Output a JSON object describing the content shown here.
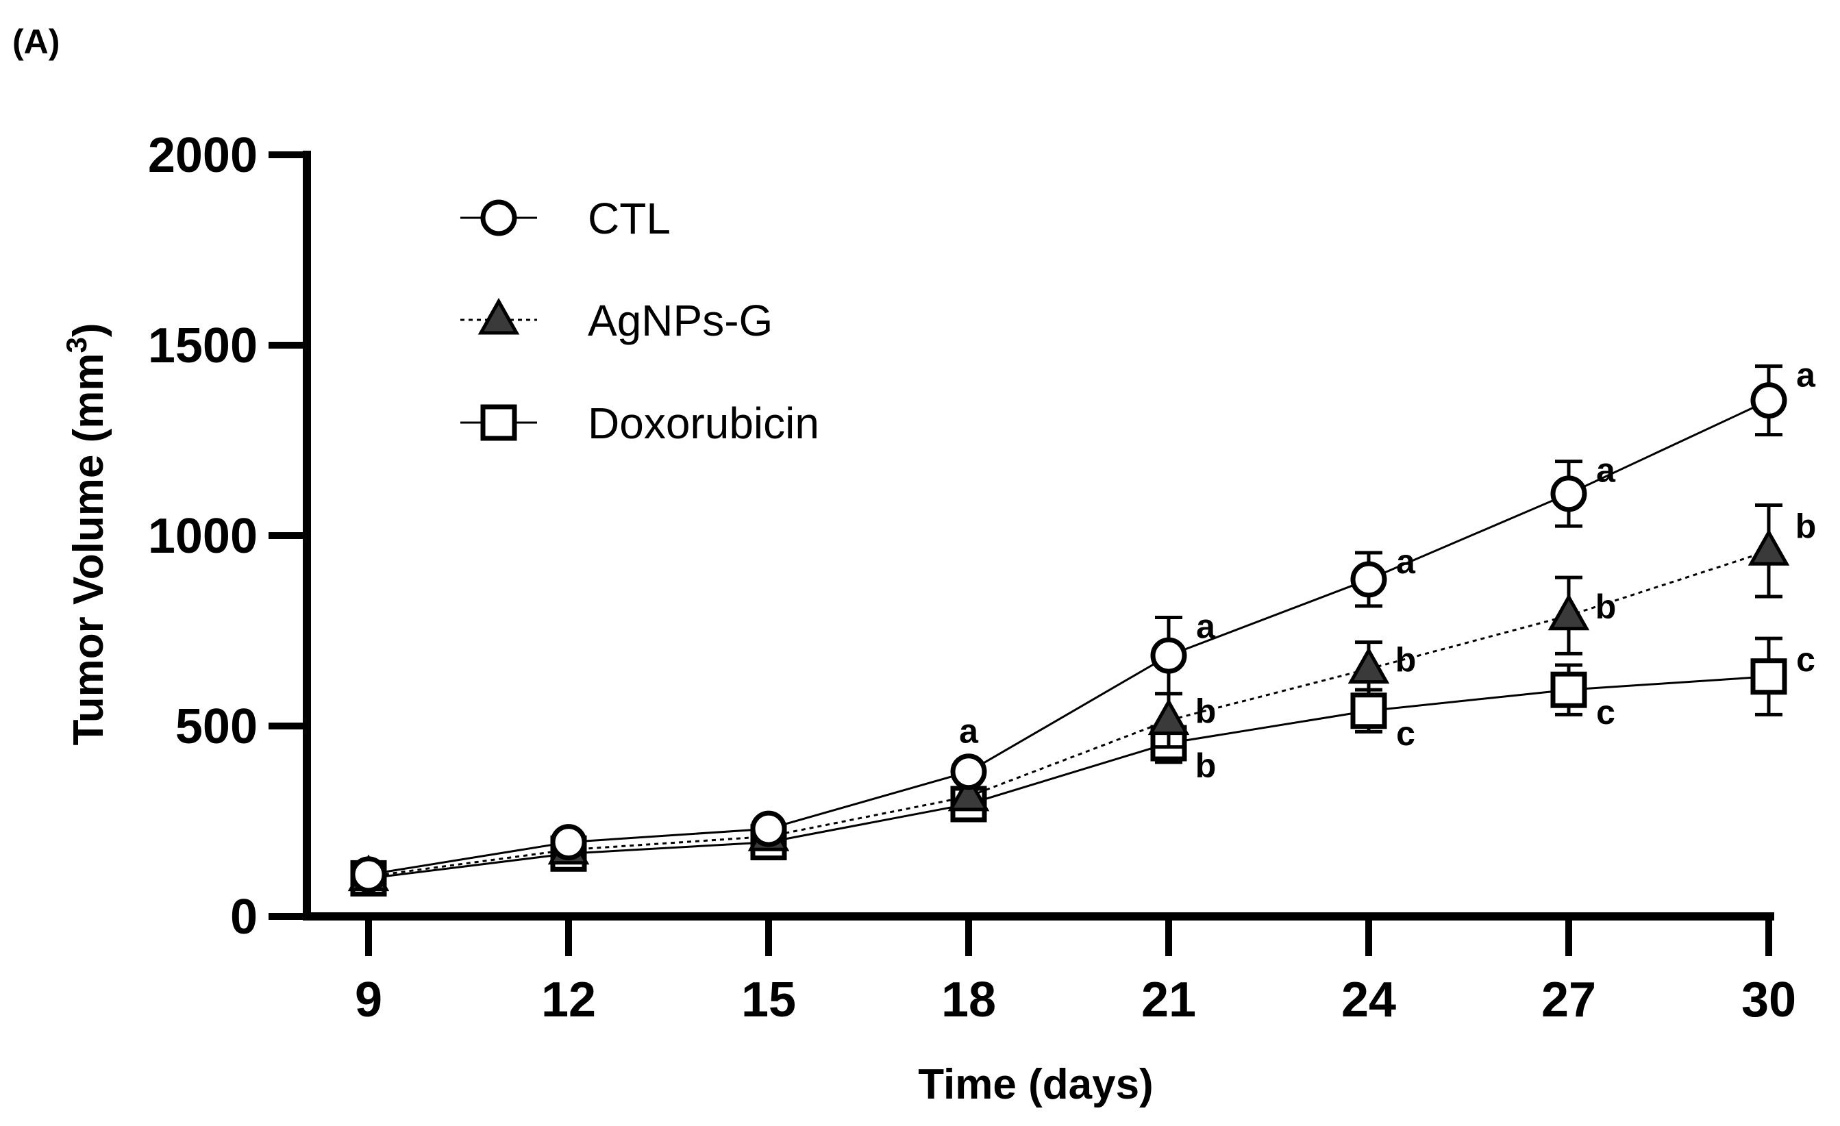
{
  "panel_label": "(A)",
  "chart_data": {
    "type": "line",
    "title": "",
    "xlabel": "Time (days)",
    "ylabel": "Tumor Volume (mm",
    "ylabel_superscript": "3",
    "ylabel_close": ")",
    "x": [
      9,
      12,
      15,
      18,
      21,
      24,
      27,
      30
    ],
    "x_tick_labels": [
      "9",
      "12",
      "15",
      "18",
      "21",
      "24",
      "27",
      "30"
    ],
    "ylim": [
      0,
      2000
    ],
    "y_ticks": [
      0,
      500,
      1000,
      1500,
      2000
    ],
    "y_tick_labels": [
      "0",
      "500",
      "1000",
      "1500",
      "2000"
    ],
    "legend_position": "top-left",
    "series": [
      {
        "name": "CTL",
        "marker": "open-circle",
        "line_style": "solid",
        "values": [
          110,
          195,
          230,
          380,
          685,
          885,
          1110,
          1355
        ],
        "errors": [
          null,
          null,
          null,
          null,
          100,
          70,
          85,
          90
        ],
        "significance": [
          null,
          null,
          null,
          "a",
          "a",
          "a",
          "a",
          "a"
        ]
      },
      {
        "name": "AgNPs-G",
        "marker": "filled-triangle",
        "line_style": "dotted",
        "values": [
          105,
          175,
          210,
          315,
          515,
          650,
          790,
          960
        ],
        "errors": [
          null,
          null,
          null,
          null,
          70,
          70,
          100,
          120
        ],
        "significance": [
          null,
          null,
          null,
          null,
          "b",
          "b",
          "b",
          "b"
        ]
      },
      {
        "name": "Doxorubicin",
        "marker": "open-square",
        "line_style": "solid",
        "values": [
          100,
          165,
          195,
          295,
          455,
          540,
          595,
          630
        ],
        "errors": [
          null,
          null,
          null,
          null,
          50,
          55,
          65,
          100
        ],
        "significance": [
          null,
          null,
          null,
          null,
          "b",
          "c",
          "c",
          "c"
        ]
      }
    ]
  }
}
